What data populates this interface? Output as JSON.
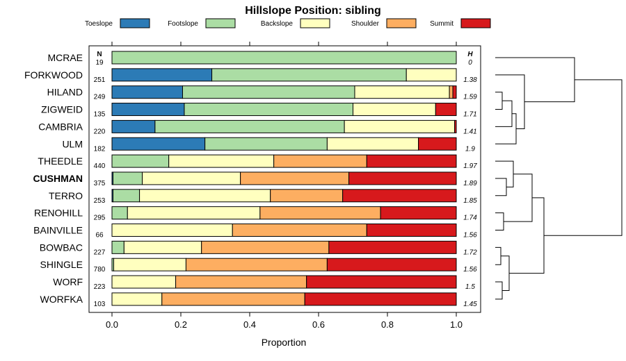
{
  "chart_data": {
    "type": "bar",
    "subtype": "stacked-horizontal-proportion",
    "title": "Hillslope Position: sibling",
    "xlabel": "Proportion",
    "xlim": [
      0,
      1
    ],
    "xticks": [
      "0.0",
      "0.2",
      "0.4",
      "0.6",
      "0.8",
      "1.0"
    ],
    "n_header": "N",
    "h_header": "H",
    "legend_position": "top",
    "series": [
      {
        "name": "Toeslope",
        "color": "#2c7bb6"
      },
      {
        "name": "Footslope",
        "color": "#abdda4"
      },
      {
        "name": "Backslope",
        "color": "#ffffbf"
      },
      {
        "name": "Shoulder",
        "color": "#fdae61"
      },
      {
        "name": "Summit",
        "color": "#d7191c"
      }
    ],
    "rows": [
      {
        "label": "MCRAE",
        "n": "19",
        "h": "0",
        "bold": false,
        "values": [
          0,
          1.0,
          0,
          0,
          0
        ]
      },
      {
        "label": "FORKWOOD",
        "n": "251",
        "h": "1.38",
        "bold": false,
        "values": [
          0.29,
          0.565,
          0.145,
          0,
          0
        ]
      },
      {
        "label": "HILAND",
        "n": "249",
        "h": "1.59",
        "bold": false,
        "values": [
          0.205,
          0.5,
          0.275,
          0.01,
          0.01
        ]
      },
      {
        "label": "ZIGWEID",
        "n": "135",
        "h": "1.71",
        "bold": false,
        "values": [
          0.21,
          0.49,
          0.24,
          0,
          0.06
        ]
      },
      {
        "label": "CAMBRIA",
        "n": "220",
        "h": "1.41",
        "bold": false,
        "values": [
          0.125,
          0.55,
          0.32,
          0,
          0.005
        ]
      },
      {
        "label": "ULM",
        "n": "182",
        "h": "1.9",
        "bold": false,
        "values": [
          0.27,
          0.355,
          0.265,
          0,
          0.11
        ]
      },
      {
        "label": "THEEDLE",
        "n": "440",
        "h": "1.97",
        "bold": false,
        "values": [
          0,
          0.165,
          0.305,
          0.27,
          0.26
        ]
      },
      {
        "label": "CUSHMAN",
        "n": "375",
        "h": "1.89",
        "bold": true,
        "values": [
          0.003,
          0.085,
          0.285,
          0.315,
          0.312
        ]
      },
      {
        "label": "TERRO",
        "n": "253",
        "h": "1.85",
        "bold": false,
        "values": [
          0.003,
          0.077,
          0.38,
          0.21,
          0.33
        ]
      },
      {
        "label": "RENOHILL",
        "n": "295",
        "h": "1.74",
        "bold": false,
        "values": [
          0,
          0.045,
          0.385,
          0.35,
          0.22
        ]
      },
      {
        "label": "BAINVILLE",
        "n": "66",
        "h": "1.56",
        "bold": false,
        "values": [
          0,
          0,
          0.35,
          0.39,
          0.26
        ]
      },
      {
        "label": "BOWBAC",
        "n": "227",
        "h": "1.72",
        "bold": false,
        "values": [
          0,
          0.035,
          0.225,
          0.37,
          0.37
        ]
      },
      {
        "label": "SHINGLE",
        "n": "780",
        "h": "1.56",
        "bold": false,
        "values": [
          0,
          0.005,
          0.21,
          0.41,
          0.375
        ]
      },
      {
        "label": "WORF",
        "n": "223",
        "h": "1.5",
        "bold": false,
        "values": [
          0,
          0,
          0.185,
          0.38,
          0.435
        ]
      },
      {
        "label": "WORFKA",
        "n": "103",
        "h": "1.45",
        "bold": false,
        "values": [
          0,
          0,
          0.145,
          0.415,
          0.44
        ]
      }
    ]
  }
}
